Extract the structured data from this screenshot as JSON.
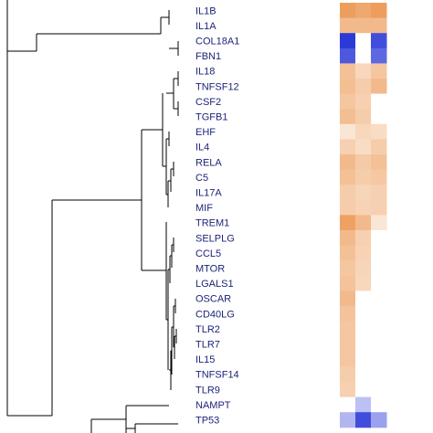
{
  "chart_data": {
    "type": "heatmap",
    "title": "",
    "rows": [
      "IL1B",
      "IL1A",
      "COL18A1",
      "FBN1",
      "IL18",
      "TNFSF12",
      "CSF2",
      "TGFB1",
      "EHF",
      "IL4",
      "RELA",
      "C5",
      "IL17A",
      "MIF",
      "TREM1",
      "SELPLG",
      "CCL5",
      "MTOR",
      "LGALS1",
      "OSCAR",
      "CD40LG",
      "TLR2",
      "TLR7",
      "IL15",
      "TNFSF14",
      "TLR9",
      "NAMPT",
      "TP53"
    ],
    "columns": [
      "",
      "",
      ""
    ],
    "color_scale": {
      "negative": "#1f2fd6",
      "zero": "#ffffff",
      "positive": "#e8822e"
    },
    "values": [
      [
        0.78,
        0.7,
        0.78
      ],
      [
        0.55,
        0.55,
        0.55
      ],
      [
        -0.95,
        0.0,
        -0.85
      ],
      [
        -0.8,
        0.0,
        -0.72
      ],
      [
        0.5,
        0.32,
        0.45
      ],
      [
        0.52,
        0.4,
        0.55
      ],
      [
        0.45,
        0.38,
        0.0
      ],
      [
        0.52,
        0.4,
        0.0
      ],
      [
        0.2,
        0.32,
        0.28
      ],
      [
        0.38,
        0.28,
        0.4
      ],
      [
        0.55,
        0.42,
        0.5
      ],
      [
        0.5,
        0.4,
        0.44
      ],
      [
        0.4,
        0.34,
        0.38
      ],
      [
        0.4,
        0.36,
        0.38
      ],
      [
        0.75,
        0.55,
        0.2
      ],
      [
        0.55,
        0.38,
        0.0
      ],
      [
        0.5,
        0.36,
        0.0
      ],
      [
        0.45,
        0.34,
        0.0
      ],
      [
        0.48,
        0.32,
        0.0
      ],
      [
        0.55,
        0.0,
        0.0
      ],
      [
        0.48,
        0.0,
        0.0
      ],
      [
        0.45,
        0.0,
        0.0
      ],
      [
        0.45,
        0.0,
        0.0
      ],
      [
        0.45,
        0.0,
        0.0
      ],
      [
        0.4,
        0.0,
        0.0
      ],
      [
        0.38,
        0.0,
        0.0
      ],
      [
        0.0,
        -0.3,
        0.0
      ],
      [
        -0.35,
        -0.85,
        -0.45
      ]
    ],
    "tree_segments": [
      [
        185,
        11,
        185,
        27
      ],
      [
        176,
        19,
        185,
        19
      ],
      [
        195,
        45,
        195,
        61
      ],
      [
        185,
        53,
        195,
        53
      ],
      [
        176,
        19,
        176,
        37
      ],
      [
        40,
        37,
        176,
        37
      ],
      [
        40,
        37,
        40,
        56
      ],
      [
        8,
        56,
        40,
        56
      ],
      [
        195,
        78,
        195,
        94
      ],
      [
        190,
        86,
        195,
        86
      ],
      [
        195,
        111,
        195,
        127
      ],
      [
        190,
        119,
        195,
        119
      ],
      [
        190,
        86,
        190,
        119
      ],
      [
        182,
        102,
        190,
        102
      ],
      [
        185,
        144,
        185,
        160
      ],
      [
        182,
        152,
        185,
        152
      ],
      [
        190,
        177,
        190,
        193
      ],
      [
        187,
        185,
        190,
        185
      ],
      [
        187,
        185,
        187,
        210
      ],
      [
        184,
        198,
        187,
        198
      ],
      [
        184,
        198,
        184,
        227
      ],
      [
        182,
        213,
        184,
        213
      ],
      [
        182,
        152,
        182,
        213
      ],
      [
        178,
        182,
        182,
        182
      ],
      [
        178,
        102,
        178,
        182
      ],
      [
        155,
        142,
        178,
        142
      ],
      [
        190,
        260,
        190,
        276
      ],
      [
        188,
        268,
        190,
        268
      ],
      [
        188,
        268,
        188,
        293
      ],
      [
        186,
        280,
        188,
        280
      ],
      [
        186,
        280,
        186,
        310
      ],
      [
        184,
        295,
        186,
        295
      ],
      [
        192,
        327,
        192,
        343
      ],
      [
        190,
        335,
        192,
        335
      ],
      [
        193,
        360,
        193,
        376
      ],
      [
        191,
        368,
        193,
        368
      ],
      [
        191,
        368,
        191,
        393
      ],
      [
        190,
        380,
        191,
        380
      ],
      [
        190,
        335,
        190,
        380
      ],
      [
        188,
        358,
        190,
        358
      ],
      [
        188,
        358,
        188,
        410
      ],
      [
        187,
        384,
        188,
        384
      ],
      [
        187,
        384,
        187,
        427
      ],
      [
        185,
        405,
        187,
        405
      ],
      [
        184,
        295,
        184,
        405
      ],
      [
        182,
        350,
        184,
        350
      ],
      [
        182,
        243,
        182,
        350
      ],
      [
        155,
        296,
        182,
        296
      ],
      [
        155,
        142,
        155,
        296
      ],
      [
        57,
        219,
        155,
        219
      ],
      [
        57,
        219,
        57,
        455
      ],
      [
        8,
        455,
        57,
        455
      ],
      [
        8,
        0,
        8,
        455
      ],
      [
        138,
        444,
        185,
        444
      ],
      [
        138,
        444,
        138,
        474
      ],
      [
        100,
        459,
        138,
        459
      ],
      [
        148,
        464,
        195,
        464
      ],
      [
        148,
        464,
        148,
        474
      ],
      [
        138,
        469,
        148,
        469
      ],
      [
        100,
        459,
        100,
        474
      ]
    ]
  }
}
